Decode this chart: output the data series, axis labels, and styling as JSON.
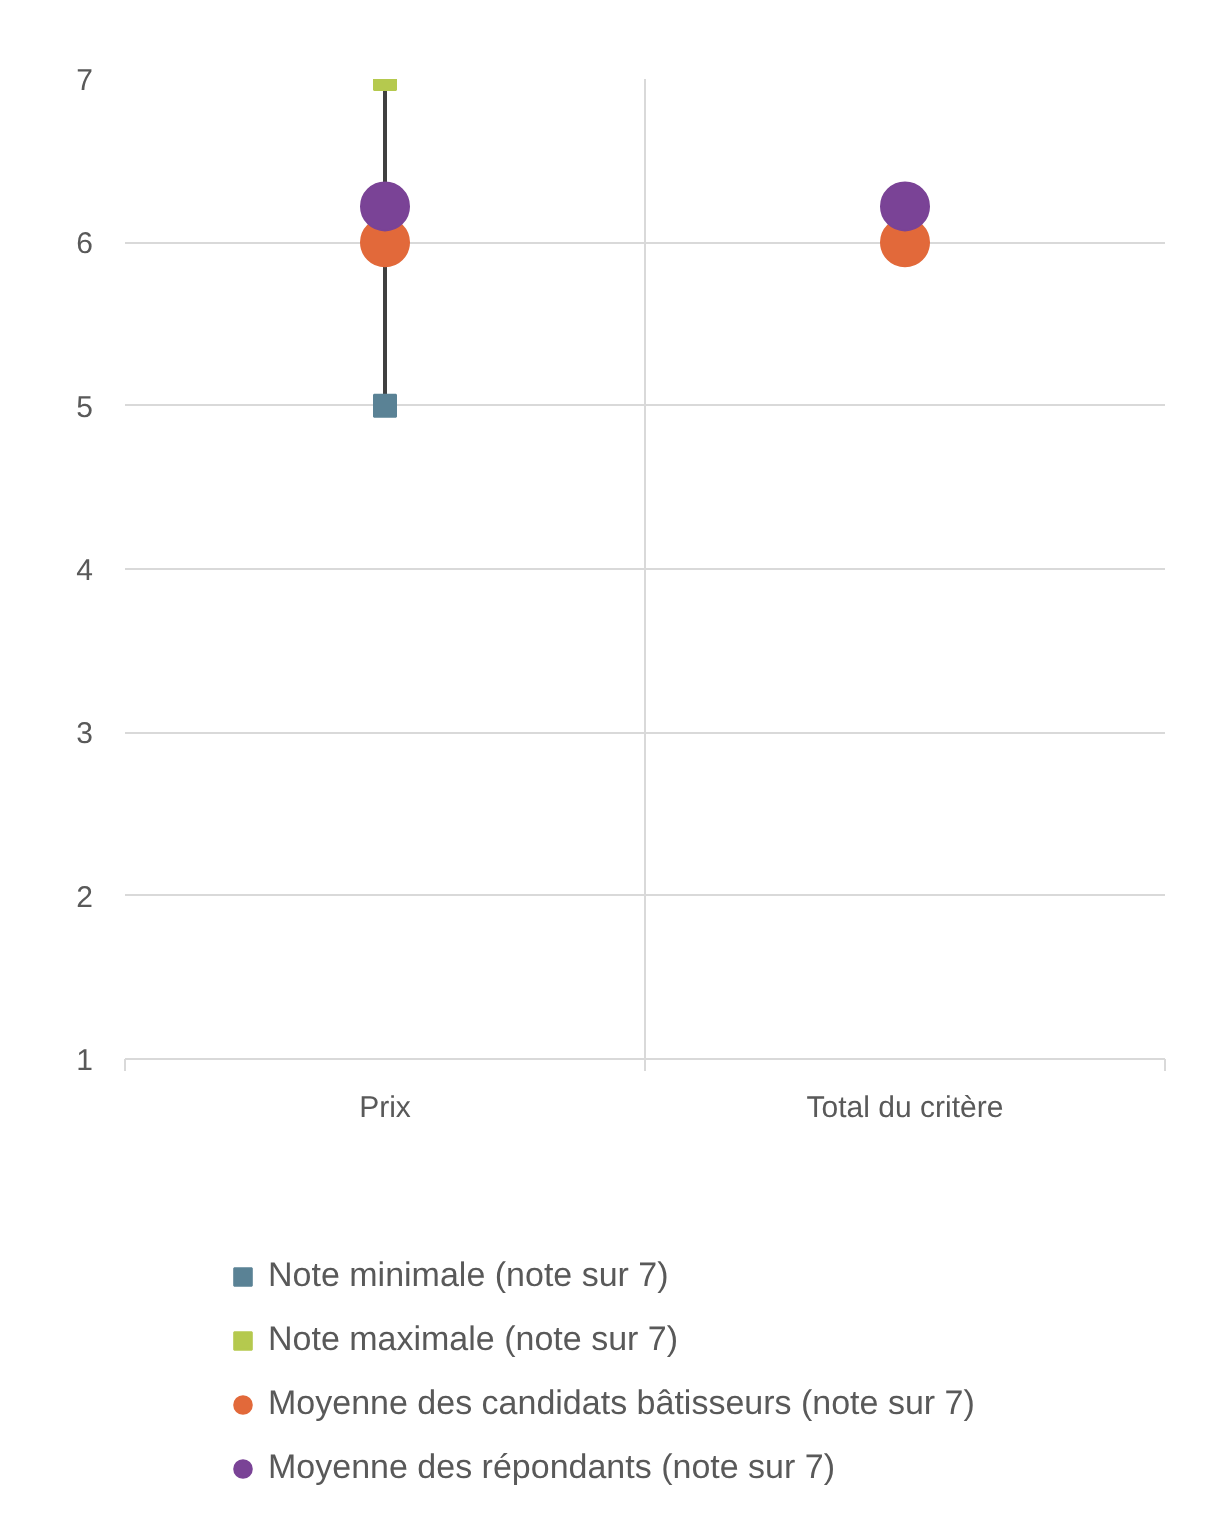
{
  "chart_data": {
    "type": "scatter",
    "categories": [
      "Prix",
      "Total du critère"
    ],
    "ylim": [
      1,
      7
    ],
    "yticks": [
      1,
      2,
      3,
      4,
      5,
      6,
      7
    ],
    "grid": true,
    "legend": "bottom",
    "series": [
      {
        "type": "line",
        "x": [
          "Prix",
          "Prix"
        ],
        "values": [
          5,
          7
        ],
        "color": "#404040",
        "marker": "none"
      },
      {
        "name": "Note minimale (note sur 7)",
        "color": "#5a8295",
        "values": [
          5,
          null
        ],
        "marker": "square"
      },
      {
        "name": "Note maximale (note sur 7)",
        "color": "#b5c94e",
        "values": [
          7,
          null
        ],
        "marker": "square"
      },
      {
        "name": "Moyenne des candidats bâtisseurs (note sur 7)",
        "color": "#e2693a",
        "values": [
          6,
          6
        ],
        "marker": "circle"
      },
      {
        "name": "Moyenne des répondants (note sur 7)",
        "color": "#7a4396",
        "values": [
          6.22,
          6.22
        ],
        "marker": "circle"
      }
    ]
  }
}
